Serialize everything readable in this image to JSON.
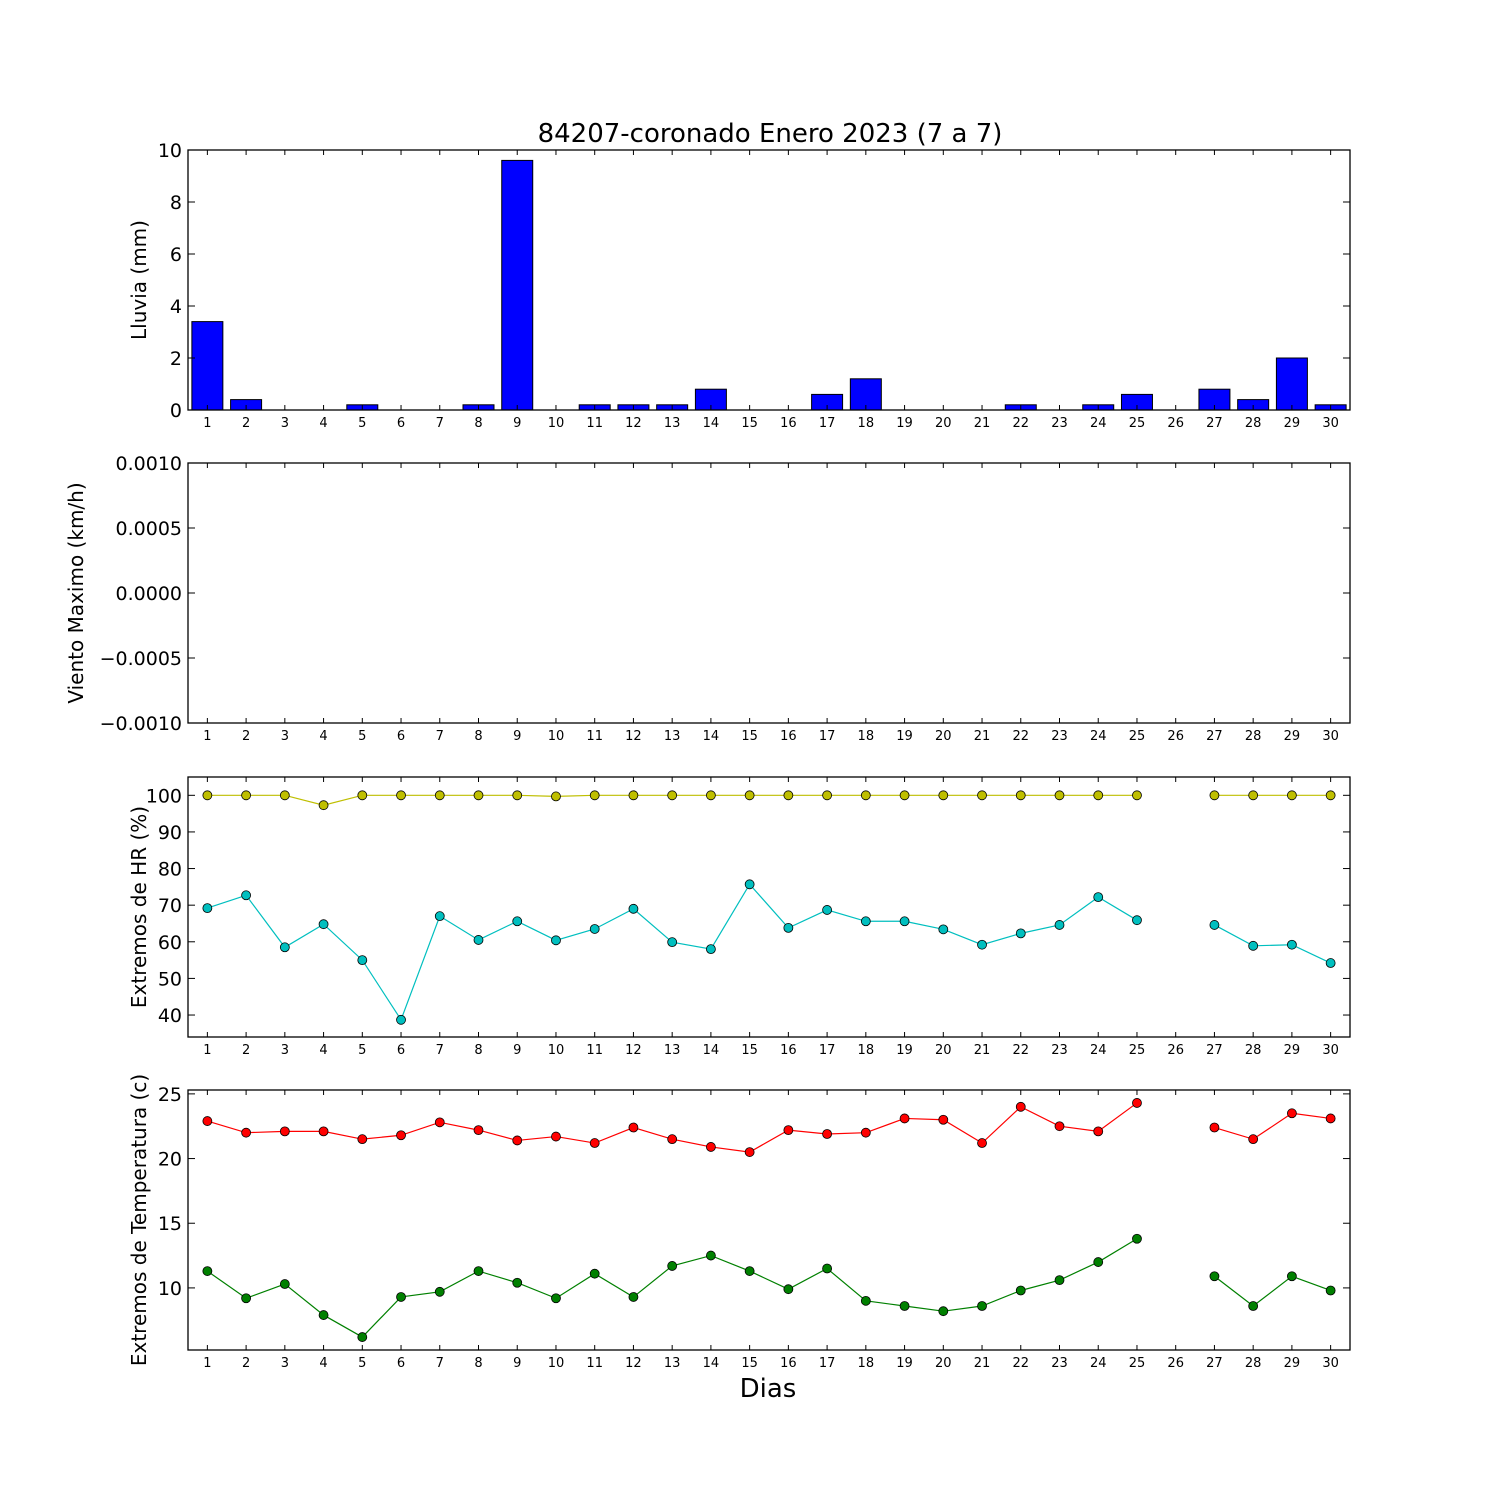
{
  "title": "84207-coronado Enero 2023  (7 a 7)",
  "xlabel": "Dias",
  "days": [
    1,
    2,
    3,
    4,
    5,
    6,
    7,
    8,
    9,
    10,
    11,
    12,
    13,
    14,
    15,
    16,
    17,
    18,
    19,
    20,
    21,
    22,
    23,
    24,
    25,
    26,
    27,
    28,
    29,
    30
  ],
  "chart_data": [
    {
      "type": "bar",
      "ylabel": "Lluvia (mm)",
      "ylim": [
        0,
        10
      ],
      "yticks": [
        0,
        2,
        4,
        6,
        8,
        10
      ],
      "grid": false,
      "color": "#0000ff",
      "categories": [
        1,
        2,
        3,
        4,
        5,
        6,
        7,
        8,
        9,
        10,
        11,
        12,
        13,
        14,
        15,
        16,
        17,
        18,
        19,
        20,
        21,
        22,
        23,
        24,
        25,
        26,
        27,
        28,
        29,
        30
      ],
      "values": [
        3.4,
        0.4,
        0,
        0,
        0.2,
        0,
        0,
        0.2,
        9.6,
        0,
        0.2,
        0.2,
        0.2,
        0.8,
        0,
        0,
        0.6,
        1.2,
        0,
        0,
        0,
        0.2,
        0,
        0.2,
        0.6,
        null,
        0.8,
        0.4,
        2.0,
        0.2
      ]
    },
    {
      "type": "line",
      "ylabel": "Viento Maximo (km/h)",
      "ylim": [
        -0.001,
        0.001
      ],
      "yticks": [
        -0.001,
        -0.0005,
        0.0,
        0.0005,
        0.001
      ],
      "ytick_labels": [
        "−0.0010",
        "−0.0005",
        "0.0000",
        "0.0005",
        "0.0010"
      ],
      "grid": false,
      "categories": [
        1,
        2,
        3,
        4,
        5,
        6,
        7,
        8,
        9,
        10,
        11,
        12,
        13,
        14,
        15,
        16,
        17,
        18,
        19,
        20,
        21,
        22,
        23,
        24,
        25,
        26,
        27,
        28,
        29,
        30
      ],
      "series": []
    },
    {
      "type": "line",
      "ylabel": "Extremos de HR (%)",
      "ylim": [
        34,
        105
      ],
      "yticks": [
        40,
        50,
        60,
        70,
        80,
        90,
        100
      ],
      "grid": false,
      "categories": [
        1,
        2,
        3,
        4,
        5,
        6,
        7,
        8,
        9,
        10,
        11,
        12,
        13,
        14,
        15,
        16,
        17,
        18,
        19,
        20,
        21,
        22,
        23,
        24,
        25,
        26,
        27,
        28,
        29,
        30
      ],
      "series": [
        {
          "color": "#bfbf00",
          "values": [
            100,
            100,
            100,
            97.3,
            100,
            100,
            100,
            100,
            100,
            99.7,
            100,
            100,
            100,
            100,
            100,
            100,
            100,
            100,
            100,
            100,
            100,
            100,
            100,
            100,
            100,
            null,
            100,
            100,
            100,
            100
          ]
        },
        {
          "color": "#00bfbf",
          "values": [
            69.2,
            72.7,
            58.5,
            64.8,
            55,
            38.7,
            67,
            60.5,
            65.6,
            60.4,
            63.5,
            69,
            59.9,
            58,
            75.7,
            63.8,
            68.7,
            65.6,
            65.6,
            63.4,
            59.2,
            62.3,
            64.6,
            72.2,
            65.9,
            null,
            64.6,
            58.9,
            59.2,
            54.2
          ]
        }
      ]
    },
    {
      "type": "line",
      "ylabel": "Extremos de Temperatura (c)",
      "ylabel_lines": [
        "Extremos de Temperatura (c)"
      ],
      "ylim": [
        5.2,
        25.3
      ],
      "yticks": [
        10,
        15,
        20,
        25
      ],
      "grid": false,
      "categories": [
        1,
        2,
        3,
        4,
        5,
        6,
        7,
        8,
        9,
        10,
        11,
        12,
        13,
        14,
        15,
        16,
        17,
        18,
        19,
        20,
        21,
        22,
        23,
        24,
        25,
        26,
        27,
        28,
        29,
        30
      ],
      "series": [
        {
          "color": "#ff0000",
          "values": [
            22.9,
            22.0,
            22.1,
            22.1,
            21.5,
            21.8,
            22.8,
            22.2,
            21.4,
            21.7,
            21.2,
            22.4,
            21.5,
            20.9,
            20.5,
            22.2,
            21.9,
            22.0,
            23.1,
            23.0,
            21.2,
            24.0,
            22.5,
            22.1,
            24.3,
            null,
            22.4,
            21.5,
            23.5,
            23.1
          ]
        },
        {
          "color": "#008000",
          "values": [
            11.3,
            9.2,
            10.3,
            7.9,
            6.2,
            9.3,
            9.7,
            11.3,
            10.4,
            9.2,
            11.1,
            9.3,
            11.7,
            12.5,
            11.3,
            9.9,
            11.5,
            9.0,
            8.6,
            8.2,
            8.6,
            9.8,
            10.6,
            12.0,
            13.8,
            null,
            10.9,
            8.6,
            10.9,
            9.8
          ]
        }
      ]
    }
  ]
}
